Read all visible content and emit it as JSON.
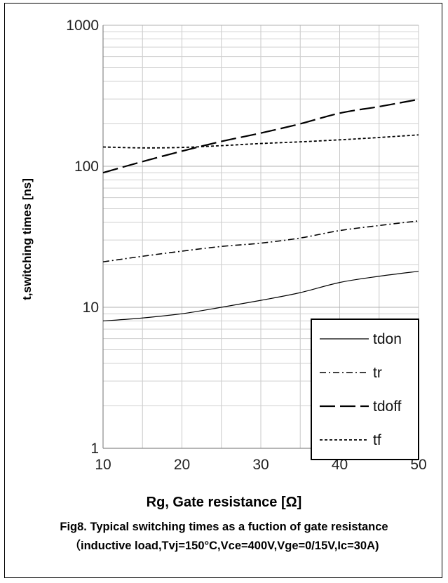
{
  "chart_data": {
    "type": "line",
    "xlabel": "Rg, Gate resistance [Ω]",
    "ylabel": "t,switching times [ns]",
    "caption": "Fig8. Typical switching times as a fuction of gate resistance（inductive load,Tvj=150°C,Vce=400V,Vge=0/15V,Ic=30A)",
    "xlim": [
      10,
      50
    ],
    "ylim": [
      1,
      1000
    ],
    "yscale": "log",
    "xticks": [
      "10",
      "20",
      "30",
      "40",
      "50"
    ],
    "yticks": [
      "1",
      "10",
      "100",
      "1000"
    ],
    "grid": true,
    "legend_position": "bottom-right",
    "series": [
      {
        "name": "tdon",
        "dash": "solid",
        "x": [
          10,
          15,
          20,
          25,
          30,
          35,
          40,
          45,
          50
        ],
        "y": [
          8,
          8.4,
          9,
          10,
          11.2,
          12.7,
          15,
          16.6,
          18
        ]
      },
      {
        "name": "tr",
        "dash": "dashdot",
        "x": [
          10,
          15,
          20,
          25,
          30,
          35,
          40,
          45,
          50
        ],
        "y": [
          21,
          23,
          25,
          27,
          28.5,
          31,
          35,
          38,
          41
        ]
      },
      {
        "name": "tdoff",
        "dash": "longdash",
        "x": [
          10,
          15,
          20,
          25,
          30,
          35,
          40,
          45,
          50
        ],
        "y": [
          90,
          108,
          128,
          150,
          172,
          200,
          238,
          265,
          298
        ]
      },
      {
        "name": "tf",
        "dash": "dotted",
        "x": [
          10,
          15,
          20,
          25,
          30,
          35,
          40,
          45,
          50
        ],
        "y": [
          137,
          135,
          136,
          140,
          145,
          149,
          154,
          160,
          167
        ]
      }
    ]
  }
}
